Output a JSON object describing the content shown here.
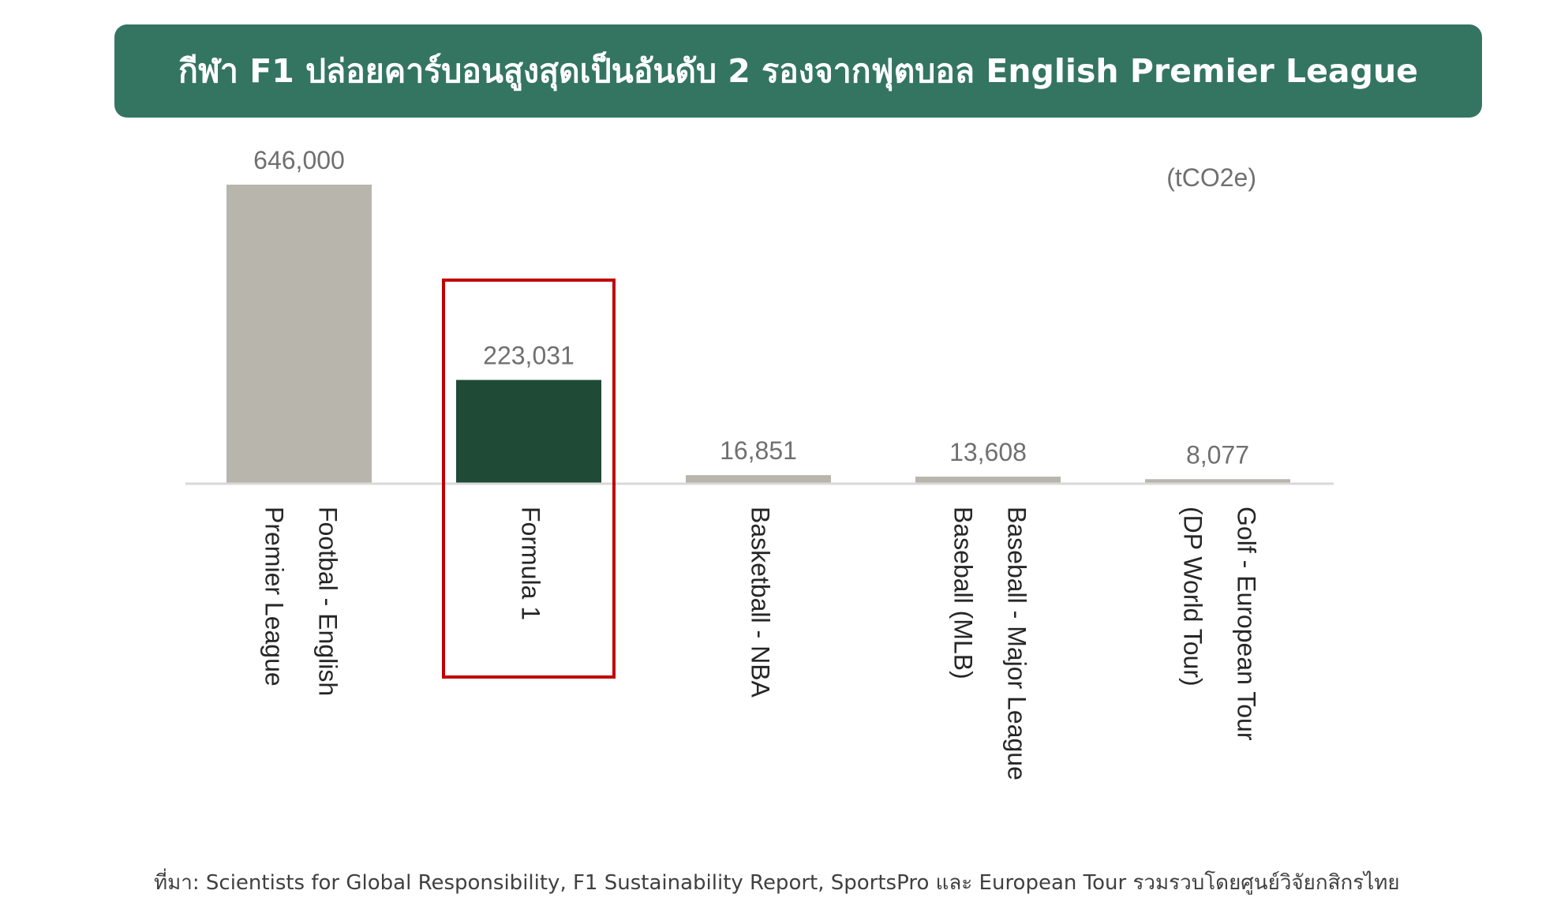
{
  "title": "กีฬา F1 ปล่อยคาร์บอนสูงสุดเป็นอันดับ 2 รองจากฟุตบอล English Premier League",
  "colors": {
    "banner": "#347562",
    "bar_default": "#b8b5ad",
    "bar_highlight": "#1e4a36",
    "highlight_box": "#c00000",
    "value_text": "#707070",
    "label_text": "#262626",
    "baseline": "#d9d9d9"
  },
  "chart_data": {
    "type": "bar",
    "unit": "(tCO2e)",
    "categories": [
      [
        "Footbal - English",
        "Premier League"
      ],
      [
        "Formula 1"
      ],
      [
        "Basketball - NBA"
      ],
      [
        "Baseball - Major League",
        "Baseball (MLB)"
      ],
      [
        "Golf - European Tour",
        "(DP World Tour)"
      ]
    ],
    "values": [
      646000,
      223031,
      16851,
      13608,
      8077
    ],
    "value_labels": [
      "646,000",
      "223,031",
      "16,851",
      "13,608",
      "8,077"
    ],
    "highlighted_category": "Formula 1",
    "ylim": [
      0,
      646000
    ],
    "grid": false,
    "legend": "none"
  },
  "source": "ที่มา: Scientists for Global Responsibility, F1 Sustainability Report, SportsPro และ  European Tour รวมรวบโดยศูนย์วิจัยกสิกรไทย"
}
